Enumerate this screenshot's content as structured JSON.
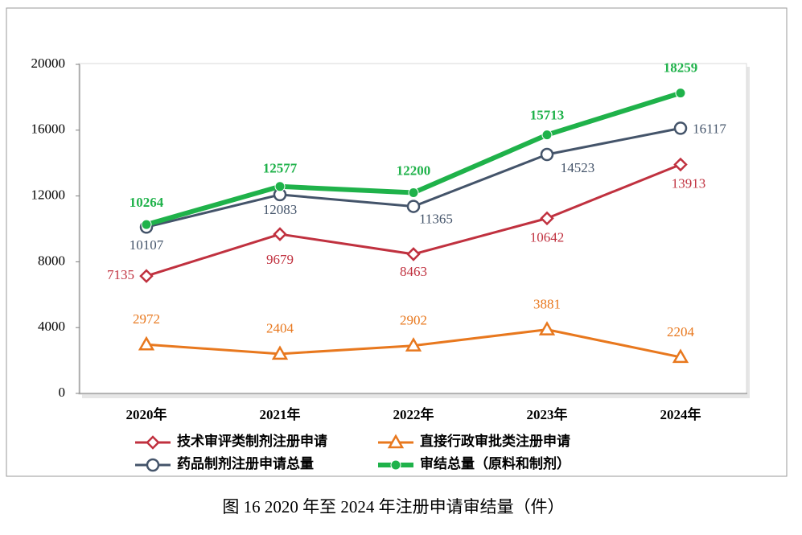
{
  "chart_data": {
    "type": "line",
    "caption": "图 16   2020 年至 2024 年注册申请审结量（件）",
    "categories": [
      "2020年",
      "2021年",
      "2022年",
      "2023年",
      "2024年"
    ],
    "ylim": [
      0,
      20000
    ],
    "yticks": [
      0,
      4000,
      8000,
      12000,
      16000,
      20000
    ],
    "series": [
      {
        "name": "技术审评类制剂注册申请",
        "color": "#c0313f",
        "marker": "diamond",
        "values": [
          7135,
          9679,
          8463,
          10642,
          13913
        ]
      },
      {
        "name": "直接行政审批类注册申请",
        "color": "#e8781e",
        "marker": "triangle",
        "values": [
          2972,
          2404,
          2902,
          3881,
          2204
        ]
      },
      {
        "name": "药品制剂注册申请总量",
        "color": "#44546a",
        "marker": "circle",
        "values": [
          10107,
          12083,
          11365,
          14523,
          16117
        ]
      },
      {
        "name": "审结总量（原料和制剂）",
        "color": "#1fb24a",
        "marker": "dot",
        "values": [
          10264,
          12577,
          12200,
          15713,
          18259
        ]
      }
    ]
  }
}
